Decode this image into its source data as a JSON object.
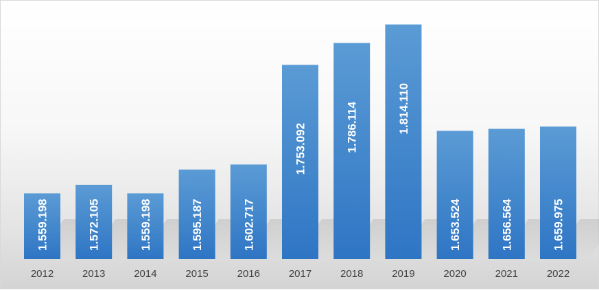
{
  "chart_data": {
    "type": "bar",
    "categories": [
      "2012",
      "2013",
      "2014",
      "2015",
      "2016",
      "2017",
      "2018",
      "2019",
      "2020",
      "2021",
      "2022"
    ],
    "values": [
      1559198,
      1572105,
      1559198,
      1595187,
      1602717,
      1753092,
      1786114,
      1814110,
      1653524,
      1656564,
      1659975
    ],
    "data_labels": [
      "1.559.198",
      "1.572.105",
      "1.559.198",
      "1.595.187",
      "1.602.717",
      "1.753.092",
      "1.786.114",
      "1.814.110",
      "1.653.524",
      "1.656.564",
      "1.659.975"
    ],
    "title": "",
    "xlabel": "",
    "ylabel": "",
    "ylim": [
      1460000,
      1850000
    ],
    "grid": false,
    "legend": "none",
    "colors": {
      "bar_top": "#5b9bd5",
      "bar_bottom": "#2e75c4",
      "label": "#ffffff",
      "tick": "#404040"
    }
  }
}
